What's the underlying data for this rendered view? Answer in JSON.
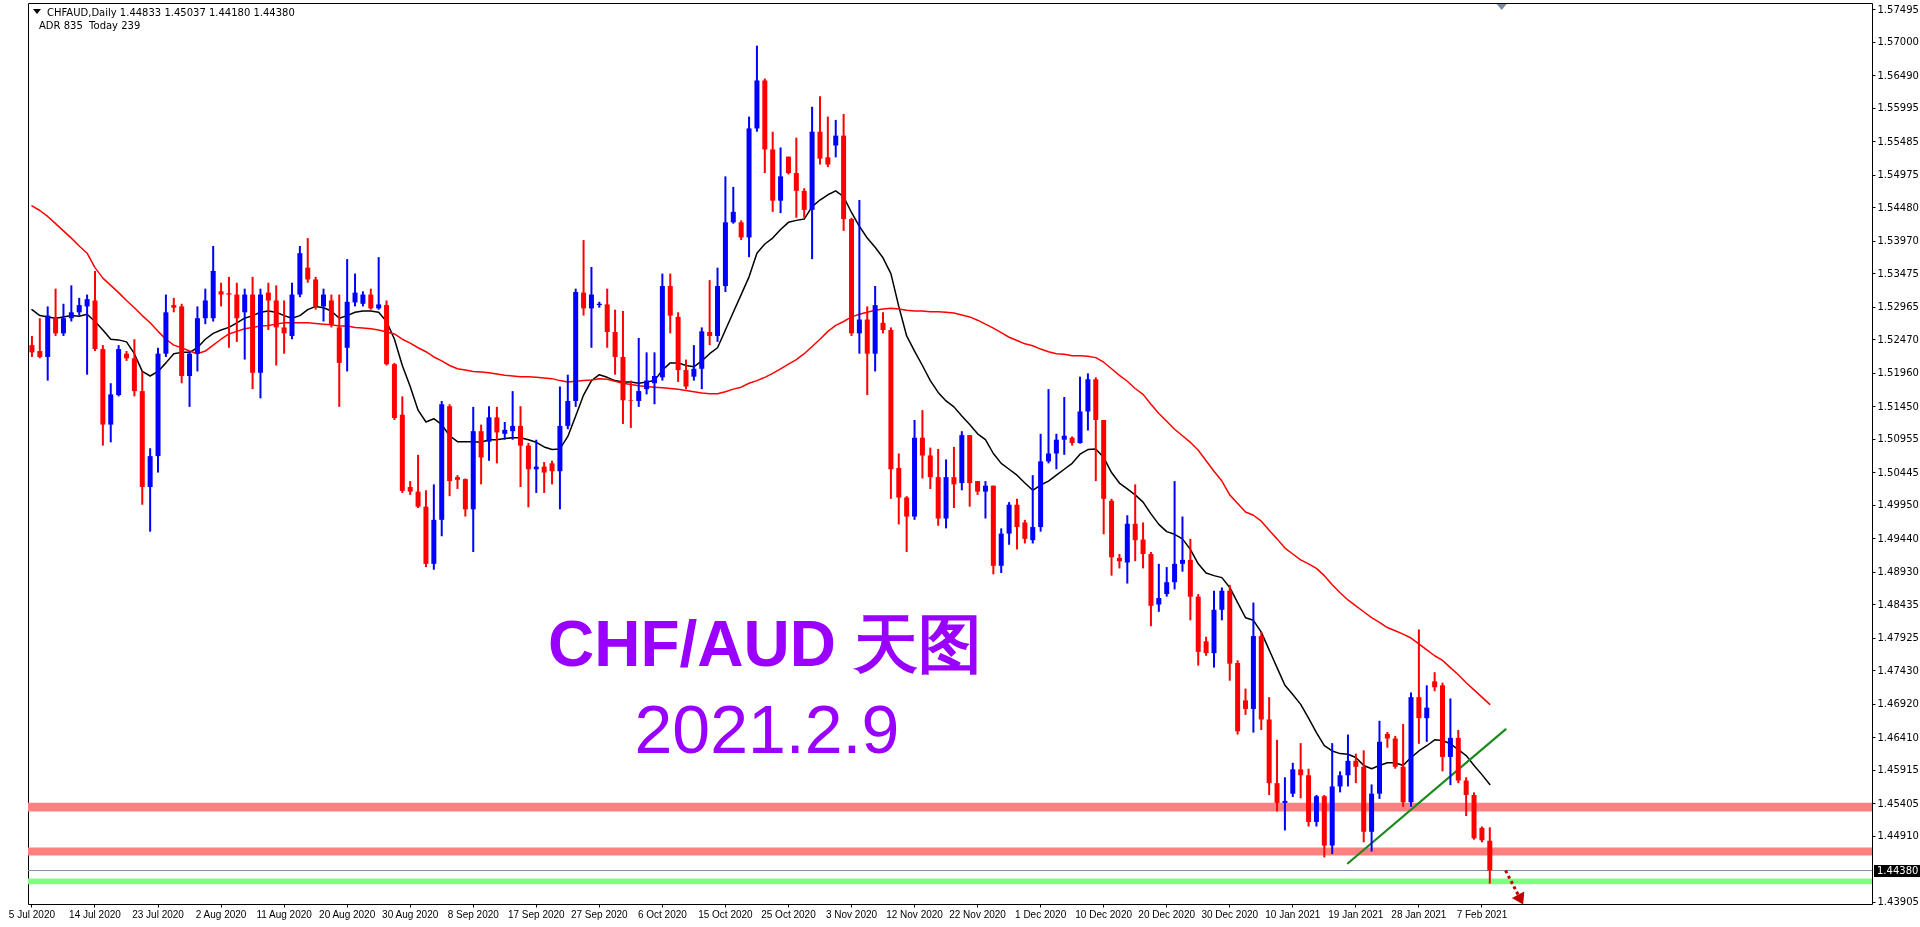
{
  "chart_data": {
    "type": "candlestick",
    "title": "CHFAUD,Daily 1.44833 1.45037 1.44180 1.44380",
    "subtitle": "ADR 835  Today 239",
    "annotations": [
      "CHF/AUD 天图",
      "2021.2.9"
    ],
    "categories": [
      "5 Jul 2020",
      null,
      null,
      null,
      null,
      null,
      null,
      null,
      "14 Jul 2020",
      null,
      null,
      null,
      null,
      null,
      null,
      null,
      "23 Jul 2020",
      null,
      null,
      null,
      null,
      null,
      null,
      null,
      "2 Aug 2020",
      null,
      null,
      null,
      null,
      null,
      null,
      null,
      "11 Aug 2020",
      null,
      null,
      null,
      null,
      null,
      null,
      null,
      "20 Aug 2020",
      null,
      null,
      null,
      null,
      null,
      null,
      null,
      "30 Aug 2020",
      null,
      null,
      null,
      null,
      null,
      null,
      null,
      "8 Sep 2020",
      null,
      null,
      null,
      null,
      null,
      null,
      null,
      "17 Sep 2020",
      null,
      null,
      null,
      null,
      null,
      null,
      null,
      "27 Sep 2020",
      null,
      null,
      null,
      null,
      null,
      null,
      null,
      "6 Oct 2020",
      null,
      null,
      null,
      null,
      null,
      null,
      null,
      "15 Oct 2020",
      null,
      null,
      null,
      null,
      null,
      null,
      null,
      "25 Oct 2020",
      null,
      null,
      null,
      null,
      null,
      null,
      null,
      "3 Nov 2020",
      null,
      null,
      null,
      null,
      null,
      null,
      null,
      "12 Nov 2020",
      null,
      null,
      null,
      null,
      null,
      null,
      null,
      "22 Nov 2020",
      null,
      null,
      null,
      null,
      null,
      null,
      null,
      "1 Dec 2020",
      null,
      null,
      null,
      null,
      null,
      null,
      null,
      "10 Dec 2020",
      null,
      null,
      null,
      null,
      null,
      null,
      null,
      "20 Dec 2020",
      null,
      null,
      null,
      null,
      null,
      null,
      null,
      "30 Dec 2020",
      null,
      null,
      null,
      null,
      null,
      null,
      null,
      "10 Jan 2021",
      null,
      null,
      null,
      null,
      null,
      null,
      null,
      "19 Jan 2021",
      null,
      null,
      null,
      null,
      null,
      null,
      null,
      "28 Jan 2021",
      null,
      null,
      null,
      null,
      null,
      null,
      null,
      "7 Feb 2021",
      null,
      null,
      null,
      null,
      null,
      null,
      null,
      null,
      null,
      null,
      null,
      null,
      null,
      null,
      null,
      null,
      null,
      null,
      null,
      null,
      null,
      null,
      null,
      null,
      null,
      null,
      null,
      null,
      null,
      null,
      null,
      null,
      null,
      null,
      null,
      null,
      null,
      null,
      null,
      null,
      null,
      null,
      null,
      null,
      null,
      null,
      null,
      null,
      null
    ],
    "ohlc": [
      [
        1.5238,
        1.5252,
        1.522,
        1.5227
      ],
      [
        1.5229,
        1.5279,
        1.5218,
        1.522
      ],
      [
        1.522,
        1.5297,
        1.5184,
        1.5283
      ],
      [
        1.5279,
        1.5324,
        1.5252,
        1.5256
      ],
      [
        1.5256,
        1.5301,
        1.5252,
        1.5279
      ],
      [
        1.5279,
        1.5329,
        1.5274,
        1.5288
      ],
      [
        1.5288,
        1.531,
        1.5283,
        1.5299
      ],
      [
        1.5297,
        1.5315,
        1.5193,
        1.5308
      ],
      [
        1.5306,
        1.5351,
        1.5229,
        1.5232
      ],
      [
        1.5232,
        1.5238,
        1.5085,
        1.5117
      ],
      [
        1.5117,
        1.518,
        1.509,
        1.5163
      ],
      [
        1.5162,
        1.5238,
        1.516,
        1.5232
      ],
      [
        1.5225,
        1.5229,
        1.5214,
        1.5218
      ],
      [
        1.5218,
        1.5247,
        1.516,
        1.5168
      ],
      [
        1.5168,
        1.5198,
        1.4995,
        1.5022
      ],
      [
        1.5022,
        1.5081,
        1.4954,
        1.5069
      ],
      [
        1.5069,
        1.5234,
        1.5044,
        1.5225
      ],
      [
        1.5225,
        1.5315,
        1.522,
        1.5288
      ],
      [
        1.5299,
        1.531,
        1.5288,
        1.5295
      ],
      [
        1.5297,
        1.5301,
        1.518,
        1.5191
      ],
      [
        1.5191,
        1.5229,
        1.5144,
        1.5225
      ],
      [
        1.5225,
        1.5297,
        1.5198,
        1.5279
      ],
      [
        1.5279,
        1.5324,
        1.527,
        1.5306
      ],
      [
        1.5279,
        1.5389,
        1.5274,
        1.5351
      ],
      [
        1.532,
        1.5333,
        1.5297,
        1.5315
      ],
      [
        1.5317,
        1.5342,
        1.5234,
        1.5315
      ],
      [
        1.5315,
        1.5333,
        1.5243,
        1.5279
      ],
      [
        1.5288,
        1.5324,
        1.5216,
        1.5315
      ],
      [
        1.5315,
        1.5342,
        1.5171,
        1.5196
      ],
      [
        1.5196,
        1.5324,
        1.5157,
        1.5315
      ],
      [
        1.5318,
        1.5333,
        1.5261,
        1.5306
      ],
      [
        1.5306,
        1.5329,
        1.5207,
        1.5265
      ],
      [
        1.5265,
        1.5306,
        1.5225,
        1.5256
      ],
      [
        1.5252,
        1.5333,
        1.5247,
        1.5315
      ],
      [
        1.5315,
        1.5389,
        1.5311,
        1.5378
      ],
      [
        1.5356,
        1.5401,
        1.5333,
        1.5338
      ],
      [
        1.5338,
        1.5342,
        1.5292,
        1.5297
      ],
      [
        1.5297,
        1.5324,
        1.5274,
        1.5315
      ],
      [
        1.5306,
        1.5315,
        1.5265,
        1.527
      ],
      [
        1.5265,
        1.5315,
        1.5144,
        1.5211
      ],
      [
        1.5234,
        1.5369,
        1.5198,
        1.5304
      ],
      [
        1.5303,
        1.5347,
        1.5297,
        1.5318
      ],
      [
        1.5301,
        1.532,
        1.5297,
        1.5315
      ],
      [
        1.5315,
        1.5324,
        1.5292,
        1.5294
      ],
      [
        1.5294,
        1.5372,
        1.5292,
        1.53
      ],
      [
        1.5299,
        1.5306,
        1.5207,
        1.5209
      ],
      [
        1.5209,
        1.5211,
        1.5124,
        1.5127
      ],
      [
        1.5132,
        1.516,
        1.5013,
        1.5016
      ],
      [
        1.5022,
        1.5031,
        1.501,
        1.5015
      ],
      [
        1.5015,
        1.5071,
        1.499,
        1.4992
      ],
      [
        1.4992,
        1.5017,
        1.49,
        1.4905
      ],
      [
        1.4905,
        1.5026,
        1.4896,
        1.4972
      ],
      [
        1.4972,
        1.5153,
        1.4947,
        1.5148
      ],
      [
        1.5145,
        1.5148,
        1.5008,
        1.5031
      ],
      [
        1.5037,
        1.504,
        1.5019,
        1.5033
      ],
      [
        1.5034,
        1.5035,
        1.4977,
        1.4988
      ],
      [
        1.4988,
        1.5144,
        1.4923,
        1.5107
      ],
      [
        1.5107,
        1.5117,
        1.5026,
        1.5067
      ],
      [
        1.5091,
        1.5145,
        1.5062,
        1.5128
      ],
      [
        1.5128,
        1.5144,
        1.5058,
        1.5105
      ],
      [
        1.5103,
        1.5121,
        1.5094,
        1.5109
      ],
      [
        1.5107,
        1.5168,
        1.5094,
        1.5115
      ],
      [
        1.5115,
        1.5145,
        1.5022,
        1.5085
      ],
      [
        1.5085,
        1.5089,
        1.4991,
        1.5049
      ],
      [
        1.5049,
        1.5094,
        1.5013,
        1.5053
      ],
      [
        1.5053,
        1.506,
        1.5013,
        1.5044
      ],
      [
        1.5058,
        1.5062,
        1.5026,
        1.5046
      ],
      [
        1.5046,
        1.5175,
        1.4988,
        1.5115
      ],
      [
        1.5115,
        1.5193,
        1.511,
        1.5153
      ],
      [
        1.5153,
        1.5324,
        1.5144,
        1.5319
      ],
      [
        1.5318,
        1.5398,
        1.5283,
        1.5294
      ],
      [
        1.5294,
        1.5357,
        1.5234,
        1.5315
      ],
      [
        1.5299,
        1.5304,
        1.5295,
        1.5301
      ],
      [
        1.53,
        1.5324,
        1.5234,
        1.5258
      ],
      [
        1.5258,
        1.5292,
        1.5193,
        1.522
      ],
      [
        1.522,
        1.529,
        1.5118,
        1.5154
      ],
      [
        1.5154,
        1.5184,
        1.5112,
        1.5153
      ],
      [
        1.5153,
        1.5249,
        1.5144,
        1.5168
      ],
      [
        1.5171,
        1.5227,
        1.5163,
        1.5184
      ],
      [
        1.518,
        1.5227,
        1.5148,
        1.5191
      ],
      [
        1.5189,
        1.5347,
        1.5184,
        1.5328
      ],
      [
        1.5328,
        1.5347,
        1.5256,
        1.5283
      ],
      [
        1.5281,
        1.5288,
        1.5182,
        1.52
      ],
      [
        1.52,
        1.5216,
        1.5171,
        1.5175
      ],
      [
        1.519,
        1.5238,
        1.5184,
        1.5202
      ],
      [
        1.5202,
        1.5265,
        1.5171,
        1.5259
      ],
      [
        1.5258,
        1.5337,
        1.5238,
        1.5252
      ],
      [
        1.5252,
        1.5356,
        1.5243,
        1.5328
      ],
      [
        1.5328,
        1.5495,
        1.5319,
        1.5425
      ],
      [
        1.5425,
        1.5479,
        1.5423,
        1.5441
      ],
      [
        1.5425,
        1.5428,
        1.5398,
        1.5402
      ],
      [
        1.5402,
        1.5586,
        1.5372,
        1.5568
      ],
      [
        1.5568,
        1.5694,
        1.5563,
        1.5641
      ],
      [
        1.5641,
        1.5644,
        1.55,
        1.5536
      ],
      [
        1.5536,
        1.5563,
        1.5441,
        1.5458
      ],
      [
        1.5458,
        1.5539,
        1.5439,
        1.5495
      ],
      [
        1.5525,
        1.5525,
        1.5498,
        1.55
      ],
      [
        1.55,
        1.5554,
        1.5432,
        1.5473
      ],
      [
        1.5473,
        1.5477,
        1.5432,
        1.5444
      ],
      [
        1.5444,
        1.5601,
        1.5369,
        1.5563
      ],
      [
        1.5563,
        1.5617,
        1.5513,
        1.5522
      ],
      [
        1.5524,
        1.5586,
        1.5509,
        1.5513
      ],
      [
        1.5542,
        1.5581,
        1.5524,
        1.5557
      ],
      [
        1.5557,
        1.559,
        1.5412,
        1.543
      ],
      [
        1.543,
        1.5432,
        1.5252,
        1.5256
      ],
      [
        1.5256,
        1.5459,
        1.5225,
        1.5277
      ],
      [
        1.5277,
        1.5297,
        1.5162,
        1.5225
      ],
      [
        1.5225,
        1.5328,
        1.5198,
        1.5299
      ],
      [
        1.5272,
        1.5288,
        1.5256,
        1.5261
      ],
      [
        1.5261,
        1.5265,
        1.5004,
        1.5049
      ],
      [
        1.5051,
        1.5073,
        1.4965,
        1.5006
      ],
      [
        1.5006,
        1.5008,
        1.4923,
        1.4977
      ],
      [
        1.4977,
        1.5124,
        1.4972,
        1.5097
      ],
      [
        1.5097,
        1.5139,
        1.5035,
        1.507
      ],
      [
        1.507,
        1.5082,
        1.5019,
        1.5037
      ],
      [
        1.5037,
        1.508,
        1.4963,
        1.4974
      ],
      [
        1.4974,
        1.5064,
        1.4959,
        1.5037
      ],
      [
        1.5037,
        1.5083,
        1.499,
        1.5026
      ],
      [
        1.5028,
        1.5107,
        1.5017,
        1.5101
      ],
      [
        1.5101,
        1.5101,
        1.4992,
        1.5028
      ],
      [
        1.5031,
        1.5031,
        1.501,
        1.5015
      ],
      [
        1.5015,
        1.5031,
        1.4974,
        1.5024
      ],
      [
        1.5024,
        1.5024,
        1.4889,
        1.4902
      ],
      [
        1.4902,
        1.4959,
        1.4891,
        1.4951
      ],
      [
        1.4951,
        1.4999,
        1.4934,
        1.4995
      ],
      [
        1.4995,
        1.5004,
        1.4927,
        1.4961
      ],
      [
        1.4968,
        1.4972,
        1.4936,
        1.4943
      ],
      [
        1.4941,
        1.504,
        1.4936,
        1.4961
      ],
      [
        1.4961,
        1.5103,
        1.4954,
        1.5061
      ],
      [
        1.5061,
        1.5171,
        1.5058,
        1.5073
      ],
      [
        1.5073,
        1.5103,
        1.5049,
        1.5094
      ],
      [
        1.5094,
        1.5159,
        1.5071,
        1.51
      ],
      [
        1.5097,
        1.5099,
        1.5085,
        1.5089
      ],
      [
        1.5089,
        1.519,
        1.5088,
        1.5137
      ],
      [
        1.5137,
        1.5195,
        1.5108,
        1.5186
      ],
      [
        1.5186,
        1.5189,
        1.5031,
        1.5124
      ],
      [
        1.5124,
        1.5124,
        1.495,
        1.5004
      ],
      [
        1.5001,
        1.5004,
        1.4887,
        1.4915
      ],
      [
        1.4914,
        1.492,
        1.4898,
        1.4909
      ],
      [
        1.4907,
        1.4979,
        1.4875,
        1.4966
      ],
      [
        1.4966,
        1.5026,
        1.4909,
        1.4941
      ],
      [
        1.4942,
        1.4968,
        1.4898,
        1.492
      ],
      [
        1.492,
        1.4923,
        1.481,
        1.4841
      ],
      [
        1.4843,
        1.4905,
        1.4832,
        1.4853
      ],
      [
        1.4859,
        1.49,
        1.4855,
        1.4877
      ],
      [
        1.4877,
        1.5031,
        1.4866,
        1.4905
      ],
      [
        1.4905,
        1.4977,
        1.4893,
        1.4911
      ],
      [
        1.4911,
        1.4943,
        1.4819,
        1.4855
      ],
      [
        1.4855,
        1.4859,
        1.475,
        1.4771
      ],
      [
        1.4787,
        1.4794,
        1.4765,
        1.4769
      ],
      [
        1.4769,
        1.4864,
        1.4747,
        1.4835
      ],
      [
        1.4835,
        1.4869,
        1.4819,
        1.4864
      ],
      [
        1.4864,
        1.4873,
        1.4727,
        1.4753
      ],
      [
        1.4754,
        1.4758,
        1.4645,
        1.465
      ],
      [
        1.4697,
        1.4715,
        1.4675,
        1.4684
      ],
      [
        1.4684,
        1.4846,
        1.4648,
        1.4795
      ],
      [
        1.4795,
        1.4801,
        1.4652,
        1.4668
      ],
      [
        1.4668,
        1.4702,
        1.4553,
        1.4571
      ],
      [
        1.4571,
        1.4637,
        1.4528,
        1.4541
      ],
      [
        1.4541,
        1.458,
        1.4499,
        1.4544
      ],
      [
        1.4555,
        1.4602,
        1.455,
        1.4592
      ],
      [
        1.4592,
        1.4632,
        1.4548,
        1.4583
      ],
      [
        1.4583,
        1.4593,
        1.4505,
        1.4512
      ],
      [
        1.4512,
        1.4553,
        1.4505,
        1.4551
      ],
      [
        1.4551,
        1.4553,
        1.4458,
        1.4476
      ],
      [
        1.4476,
        1.4632,
        1.4463,
        1.4566
      ],
      [
        1.4566,
        1.4589,
        1.4557,
        1.4583
      ],
      [
        1.4583,
        1.4645,
        1.4566,
        1.4605
      ],
      [
        1.4605,
        1.4616,
        1.4571,
        1.4596
      ],
      [
        1.4596,
        1.4621,
        1.4481,
        1.4497
      ],
      [
        1.4497,
        1.4569,
        1.4467,
        1.4555
      ],
      [
        1.4555,
        1.4666,
        1.4547,
        1.4634
      ],
      [
        1.4646,
        1.4649,
        1.4625,
        1.4639
      ],
      [
        1.4639,
        1.4643,
        1.4593,
        1.4596
      ],
      [
        1.4596,
        1.4661,
        1.4535,
        1.4542
      ],
      [
        1.4542,
        1.4709,
        1.4535,
        1.4702
      ],
      [
        1.4702,
        1.4805,
        1.4631,
        1.467
      ],
      [
        1.467,
        1.472,
        1.4634,
        1.4686
      ],
      [
        1.4726,
        1.474,
        1.4711,
        1.4717
      ],
      [
        1.472,
        1.4724,
        1.4589,
        1.4611
      ],
      [
        1.4611,
        1.47,
        1.4568,
        1.464
      ],
      [
        1.464,
        1.4652,
        1.4571,
        1.4575
      ],
      [
        1.4575,
        1.458,
        1.4521,
        1.4553
      ],
      [
        1.4553,
        1.4557,
        1.4485,
        1.4487
      ],
      [
        1.4503,
        1.4505,
        1.4481,
        1.4484
      ],
      [
        1.44833,
        1.45037,
        1.4418,
        1.4438
      ],
      null,
      null,
      null,
      null,
      null,
      null,
      null,
      null,
      null,
      null,
      null,
      null,
      null,
      null,
      null,
      null,
      null,
      null,
      null,
      null,
      null,
      null,
      null,
      null,
      null,
      null,
      null,
      null,
      null,
      null,
      null,
      null,
      null,
      null,
      null,
      null,
      null,
      null,
      null,
      null,
      null,
      null,
      null,
      null,
      null,
      null,
      null,
      null
    ],
    "colors": [
      "#ff0000",
      "#ff0000",
      "#0000ff",
      "#ff0000",
      "#0000ff",
      "#0000ff",
      "#0000ff",
      "#0000ff",
      "#ff0000",
      "#ff0000",
      "#0000ff",
      "#0000ff",
      "#ff0000",
      "#ff0000",
      "#ff0000",
      "#0000ff",
      "#0000ff",
      "#0000ff",
      "#ff0000",
      "#ff0000",
      "#0000ff",
      "#0000ff",
      "#0000ff",
      "#0000ff",
      "#ff0000",
      "#ff0000",
      "#ff0000",
      "#0000ff",
      "#ff0000",
      "#0000ff",
      "#ff0000",
      "#ff0000",
      "#ff0000",
      "#0000ff",
      "#0000ff",
      "#ff0000",
      "#ff0000",
      "#0000ff",
      "#ff0000",
      "#ff0000",
      "#0000ff",
      "#0000ff",
      "#0000ff",
      "#ff0000",
      "#0000ff",
      "#ff0000",
      "#ff0000",
      "#ff0000",
      "#ff0000",
      "#ff0000",
      "#ff0000",
      "#0000ff",
      "#0000ff",
      "#ff0000",
      "#ff0000",
      "#ff0000",
      "#0000ff",
      "#ff0000",
      "#0000ff",
      "#ff0000",
      "#0000ff",
      "#0000ff",
      "#ff0000",
      "#ff0000",
      "#0000ff",
      "#ff0000",
      "#ff0000",
      "#0000ff",
      "#0000ff",
      "#0000ff",
      "#ff0000",
      "#0000ff",
      "#0000ff",
      "#ff0000",
      "#ff0000",
      "#ff0000",
      "#ff0000",
      "#0000ff",
      "#0000ff",
      "#0000ff",
      "#0000ff",
      "#ff0000",
      "#ff0000",
      "#ff0000",
      "#0000ff",
      "#0000ff",
      "#ff0000",
      "#0000ff",
      "#0000ff",
      "#0000ff",
      "#ff0000",
      "#0000ff",
      "#0000ff",
      "#ff0000",
      "#ff0000",
      "#0000ff",
      "#ff0000",
      "#ff0000",
      "#ff0000",
      "#0000ff",
      "#ff0000",
      "#ff0000",
      "#0000ff",
      "#ff0000",
      "#ff0000",
      "#0000ff",
      "#ff0000",
      "#0000ff",
      "#ff0000",
      "#ff0000",
      "#ff0000",
      "#ff0000",
      "#0000ff",
      "#ff0000",
      "#ff0000",
      "#ff0000",
      "#0000ff",
      "#ff0000",
      "#0000ff",
      "#ff0000",
      "#ff0000",
      "#0000ff",
      "#ff0000",
      "#0000ff",
      "#0000ff",
      "#ff0000",
      "#ff0000",
      "#0000ff",
      "#0000ff",
      "#0000ff",
      "#0000ff",
      "#0000ff",
      "#ff0000",
      "#0000ff",
      "#0000ff",
      "#ff0000",
      "#ff0000",
      "#ff0000",
      "#ff0000",
      "#0000ff",
      "#ff0000",
      "#ff0000",
      "#ff0000",
      "#0000ff",
      "#0000ff",
      "#0000ff",
      "#0000ff",
      "#ff0000",
      "#ff0000",
      "#ff0000",
      "#0000ff",
      "#0000ff",
      "#ff0000",
      "#ff0000",
      "#ff0000",
      "#0000ff",
      "#ff0000",
      "#ff0000",
      "#ff0000",
      "#0000ff",
      "#0000ff",
      "#ff0000",
      "#ff0000",
      "#0000ff",
      "#ff0000",
      "#0000ff",
      "#0000ff",
      "#0000ff",
      "#ff0000",
      "#ff0000",
      "#0000ff",
      "#0000ff",
      "#ff0000",
      "#ff0000",
      "#ff0000",
      "#0000ff",
      "#ff0000",
      "#0000ff",
      "#ff0000",
      "#ff0000",
      "#0000ff",
      "#ff0000",
      "#ff0000",
      "#ff0000",
      "#ff0000",
      "#ff0000",
      null,
      null,
      null,
      null,
      null,
      null,
      null,
      null,
      null,
      null,
      null,
      null,
      null,
      null,
      null,
      null,
      null,
      null,
      null,
      null,
      null,
      null,
      null,
      null,
      null,
      null,
      null,
      null,
      null,
      null,
      null,
      null,
      null,
      null,
      null,
      null,
      null,
      null,
      null,
      null,
      null,
      null,
      null,
      null,
      null,
      null,
      null,
      null
    ],
    "series": [
      {
        "type": "line",
        "color": "#000000",
        "values": [
          1.5292,
          1.5283,
          1.5281,
          1.5279,
          1.5281,
          1.5283,
          1.5282,
          1.5285,
          1.5274,
          1.5261,
          1.5247,
          1.5246,
          1.5243,
          1.5225,
          1.5198,
          1.5191,
          1.5198,
          1.5211,
          1.5225,
          1.5227,
          1.5227,
          1.5234,
          1.5247,
          1.5256,
          1.5261,
          1.5265,
          1.5272,
          1.5279,
          1.5283,
          1.5288,
          1.529,
          1.5288,
          1.5283,
          1.5279,
          1.5283,
          1.5292,
          1.5297,
          1.5295,
          1.529,
          1.5279,
          1.5283,
          1.5288,
          1.529,
          1.529,
          1.5288,
          1.5274,
          1.5247,
          1.5207,
          1.5175,
          1.5139,
          1.5121,
          1.5126,
          1.5117,
          1.51,
          1.5091,
          1.5091,
          1.5091,
          1.509,
          1.5094,
          1.5094,
          1.5096,
          1.5097,
          1.5097,
          1.5094,
          1.509,
          1.5083,
          1.5079,
          1.508,
          1.5099,
          1.513,
          1.5162,
          1.5184,
          1.5193,
          1.5189,
          1.5184,
          1.5182,
          1.5182,
          1.518,
          1.5182,
          1.5184,
          1.52,
          1.5211,
          1.5211,
          1.5207,
          1.5205,
          1.5214,
          1.5225,
          1.5234,
          1.5261,
          1.5288,
          1.5315,
          1.5342,
          1.5378,
          1.5392,
          1.5401,
          1.5414,
          1.5425,
          1.5428,
          1.543,
          1.5449,
          1.5459,
          1.5467,
          1.5473,
          1.5464,
          1.544,
          1.5419,
          1.5401,
          1.5387,
          1.5371,
          1.5347,
          1.5297,
          1.5252,
          1.5229,
          1.5207,
          1.5184,
          1.5166,
          1.5153,
          1.5144,
          1.513,
          1.5117,
          1.5103,
          1.5094,
          1.5073,
          1.5058,
          1.5049,
          1.504,
          1.5028,
          1.5017,
          1.5025,
          1.5031,
          1.504,
          1.5049,
          1.5058,
          1.5072,
          1.5079,
          1.508,
          1.5067,
          1.5044,
          1.5028,
          1.5019,
          1.501,
          1.4999,
          1.4981,
          1.4965,
          1.4954,
          1.495,
          1.4943,
          1.4927,
          1.4905,
          1.4891,
          1.4887,
          1.4884,
          1.4869,
          1.4846,
          1.4823,
          1.4819,
          1.4801,
          1.4774,
          1.4747,
          1.472,
          1.4706,
          1.4691,
          1.467,
          1.4648,
          1.4628,
          1.462,
          1.4616,
          1.4615,
          1.461,
          1.4598,
          1.4593,
          1.4598,
          1.4602,
          1.4602,
          1.4598,
          1.461,
          1.462,
          1.4628,
          1.4637,
          1.4636,
          1.4631,
          1.4622,
          1.4613,
          1.4598,
          1.4584,
          1.4569,
          null,
          null,
          null,
          null,
          null,
          null,
          null,
          null,
          null,
          null,
          null,
          null,
          null,
          null,
          null,
          null,
          null,
          null,
          null,
          null,
          null,
          null,
          null,
          null,
          null,
          null,
          null,
          null,
          null,
          null,
          null,
          null,
          null,
          null,
          null,
          null,
          null,
          null,
          null,
          null,
          null,
          null,
          null,
          null,
          null,
          null,
          null,
          null
        ]
      },
      {
        "type": "line",
        "color": "#ff0000",
        "values": [
          1.545,
          1.5443,
          1.5434,
          1.5423,
          1.5412,
          1.5401,
          1.5389,
          1.5378,
          1.5356,
          1.534,
          1.5329,
          1.5318,
          1.5306,
          1.5295,
          1.5283,
          1.5272,
          1.5259,
          1.5247,
          1.5238,
          1.5234,
          1.5229,
          1.5225,
          1.5229,
          1.5238,
          1.5247,
          1.5255,
          1.5259,
          1.5263,
          1.5265,
          1.5267,
          1.5268,
          1.527,
          1.5272,
          1.5272,
          1.5272,
          1.5272,
          1.5271,
          1.527,
          1.5269,
          1.5267,
          1.5267,
          1.5265,
          1.5264,
          1.5263,
          1.5261,
          1.5258,
          1.5255,
          1.5247,
          1.5241,
          1.5234,
          1.5228,
          1.522,
          1.5214,
          1.5207,
          1.5202,
          1.52,
          1.5198,
          1.5197,
          1.5196,
          1.5194,
          1.5192,
          1.5191,
          1.519,
          1.519,
          1.5189,
          1.5188,
          1.5187,
          1.5184,
          1.5182,
          1.5183,
          1.5184,
          1.5185,
          1.5187,
          1.5186,
          1.5183,
          1.518,
          1.5178,
          1.5176,
          1.5175,
          1.5174,
          1.5173,
          1.5172,
          1.5171,
          1.5169,
          1.5167,
          1.5165,
          1.5164,
          1.5164,
          1.5167,
          1.5171,
          1.5174,
          1.518,
          1.5184,
          1.5189,
          1.5195,
          1.5202,
          1.5209,
          1.5216,
          1.5225,
          1.5236,
          1.5247,
          1.5259,
          1.5268,
          1.5274,
          1.5281,
          1.5285,
          1.5288,
          1.5291,
          1.5293,
          1.5294,
          1.5293,
          1.5291,
          1.529,
          1.529,
          1.5289,
          1.5289,
          1.5288,
          1.5287,
          1.5284,
          1.5281,
          1.5276,
          1.527,
          1.5264,
          1.5257,
          1.525,
          1.5245,
          1.524,
          1.5237,
          1.5232,
          1.5228,
          1.5225,
          1.5224,
          1.5222,
          1.5222,
          1.5221,
          1.5219,
          1.5212,
          1.5202,
          1.5192,
          1.5183,
          1.5172,
          1.5163,
          1.5148,
          1.5134,
          1.5122,
          1.511,
          1.51,
          1.509,
          1.5078,
          1.5062,
          1.5046,
          1.5031,
          1.501,
          1.4997,
          1.4984,
          1.4979,
          1.497,
          1.4956,
          1.4943,
          1.4929,
          1.492,
          1.4911,
          1.4905,
          1.4898,
          1.4887,
          1.4873,
          1.4861,
          1.485,
          1.4841,
          1.4832,
          1.4823,
          1.4816,
          1.4808,
          1.4803,
          1.4798,
          1.4792,
          1.4783,
          1.4774,
          1.4765,
          1.4758,
          1.4747,
          1.4736,
          1.4724,
          1.4713,
          1.4702,
          1.4691,
          null,
          null,
          null,
          null,
          null,
          null,
          null,
          null,
          null,
          null,
          null,
          null,
          null,
          null,
          null,
          null,
          null,
          null,
          null,
          null,
          null,
          null,
          null,
          null,
          null,
          null,
          null,
          null,
          null,
          null,
          null,
          null,
          null,
          null,
          null,
          null,
          null,
          null,
          null,
          null,
          null,
          null,
          null,
          null,
          null,
          null,
          null,
          null
        ]
      },
      {
        "type": "line",
        "color": "#1a8a1a",
        "values": [
          null,
          null,
          null,
          null,
          null,
          null,
          null,
          null,
          null,
          null,
          null,
          null,
          null,
          null,
          null,
          null,
          null,
          null,
          null,
          null,
          null,
          null,
          null,
          null,
          null,
          null,
          null,
          null,
          null,
          null,
          null,
          null,
          null,
          null,
          null,
          null,
          null,
          null,
          null,
          null,
          null,
          null,
          null,
          null,
          null,
          null,
          null,
          null,
          null,
          null,
          null,
          null,
          null,
          null,
          null,
          null,
          null,
          null,
          null,
          null,
          null,
          null,
          null,
          null,
          null,
          null,
          null,
          null,
          null,
          null,
          null,
          null,
          null,
          null,
          null,
          null,
          null,
          null,
          null,
          null,
          null,
          null,
          null,
          null,
          null,
          null,
          null,
          null,
          null,
          null,
          null,
          null,
          null,
          null,
          null,
          null,
          null,
          null,
          null,
          null,
          null,
          null,
          null,
          null,
          null,
          null,
          null,
          null,
          null,
          null,
          null,
          null,
          null,
          null,
          null,
          null,
          null,
          null,
          null,
          null,
          null,
          null,
          null,
          null,
          null,
          null,
          null,
          null,
          null,
          null,
          null,
          null,
          null,
          null,
          null,
          null,
          null,
          null,
          null,
          null,
          null,
          null,
          null,
          null,
          null,
          null,
          null,
          null,
          null,
          null,
          null,
          null,
          null,
          null,
          null,
          null,
          null,
          null,
          null,
          null,
          null,
          null,
          null,
          null,
          null,
          null,
          null,
          1.4449,
          null,
          null,
          null,
          null,
          null,
          null,
          null,
          null,
          null,
          null,
          null,
          null,
          null,
          null,
          null,
          null,
          null,
          null,
          null,
          1.4653,
          null,
          null,
          null,
          null,
          null,
          null,
          null,
          null,
          null,
          null,
          null,
          null,
          null,
          null,
          null,
          null,
          null,
          null,
          null,
          null,
          null,
          null,
          null,
          null,
          null,
          null,
          null,
          null,
          null,
          null,
          null,
          null,
          null,
          null,
          null,
          null,
          null,
          null,
          null,
          null,
          null,
          null,
          null,
          null,
          null,
          null
        ]
      }
    ],
    "ylim": [
      1.4387,
      1.5759
    ],
    "yticks": [
      1.57495,
      {
        "value": 1.57,
        "label": "1.57000"
      },
      {
        "value": 1.5649,
        "label": "1.56490"
      },
      1.55995,
      1.55485,
      1.54975,
      {
        "value": 1.5448,
        "label": "1.54480"
      },
      {
        "value": 1.5397,
        "label": "1.53970"
      },
      1.53475,
      1.52965,
      {
        "value": 1.5247,
        "label": "1.52470"
      },
      {
        "value": 1.5196,
        "label": "1.51960"
      },
      {
        "value": 1.5145,
        "label": "1.51450"
      },
      1.50955,
      1.50445,
      {
        "value": 1.4995,
        "label": "1.49950"
      },
      {
        "value": 1.4944,
        "label": "1.49440"
      },
      {
        "value": 1.4893,
        "label": "1.48930"
      },
      1.48435,
      1.47925,
      {
        "value": 1.4743,
        "label": "1.47430"
      },
      {
        "value": 1.4692,
        "label": "1.46920"
      },
      {
        "value": 1.4641,
        "label": "1.46410"
      },
      1.45915,
      1.45405,
      {
        "value": 1.4491,
        "label": "1.44910"
      },
      1.43905
    ],
    "ref_lines": [
      {
        "axis": "y",
        "value": 1.4438,
        "label": "1.44380",
        "color": "#8090b0"
      }
    ],
    "bands": [
      {
        "axis": "y",
        "from": 1.4528,
        "to": 1.4541,
        "color": "#ff8080"
      },
      {
        "axis": "y",
        "from": 1.4461,
        "to": 1.4473,
        "color": "#ff8080"
      },
      {
        "axis": "y",
        "from": 1.4417,
        "to": 1.4426,
        "color": "#80ff80"
      }
    ]
  }
}
